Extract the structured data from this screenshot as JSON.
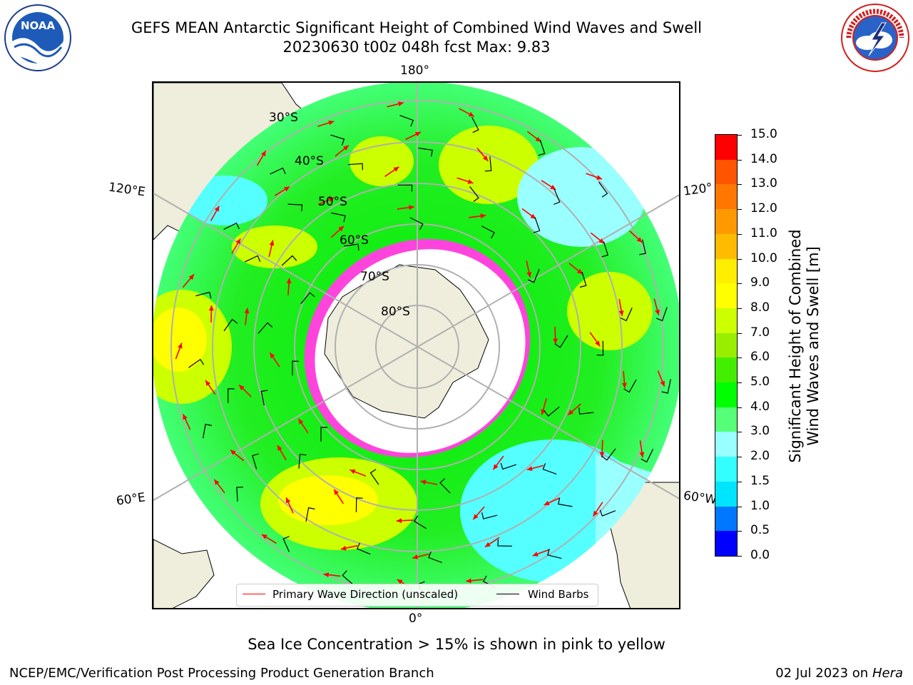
{
  "title_line1": "GEFS MEAN Antarctic Significant Height of Combined Wind Waves and Swell",
  "title_line2": "20230630 t00z 048h fcst   Max: 9.83",
  "longitude_labels": {
    "top": "180°",
    "left_upper": "120°E",
    "right_upper": "120°",
    "left_lower": "60°E",
    "right_lower": "60°W",
    "bottom": "0°"
  },
  "latitude_labels": [
    "30°S",
    "40°S",
    "50°S",
    "60°S",
    "70°S",
    "80°S"
  ],
  "colorbar": {
    "label_line1": "Significant Height of Combined",
    "label_line2": "Wind Waves and Swell [m]",
    "ticks": [
      "15.0",
      "14.0",
      "13.0",
      "12.0",
      "11.0",
      "10.0",
      "9.0",
      "8.0",
      "7.0",
      "6.0",
      "5.0",
      "4.0",
      "3.0",
      "2.0",
      "1.5",
      "1.0",
      "0.5",
      "0.0"
    ],
    "colors_bottom_to_top": [
      "#0000ff",
      "#0077ff",
      "#00e5ff",
      "#33ffff",
      "#99ffff",
      "#55ff77",
      "#00ff00",
      "#44ee00",
      "#99ee00",
      "#ccff00",
      "#ffff00",
      "#ffee00",
      "#ffbb00",
      "#ff9900",
      "#ff7700",
      "#ff5500",
      "#ff0000"
    ]
  },
  "legend": {
    "wave_label": "Primary Wave Direction (unscaled)",
    "wind_label": "Wind Barbs",
    "wave_color": "#ff0000",
    "wind_color": "#000000"
  },
  "note": "Sea Ice Concentration > 15% is shown in pink to yellow",
  "footer_left": "NCEP/EMC/Verification Post Processing Product Generation Branch",
  "footer_right_date": "02 Jul 2023 on ",
  "footer_right_host": "Hera",
  "logo_noaa_text": "NOAA",
  "colors": {
    "land": "#efeedd",
    "ice": "#ffffff",
    "ice_edge": "#ff44dd",
    "grid": "#b0b0b0"
  }
}
